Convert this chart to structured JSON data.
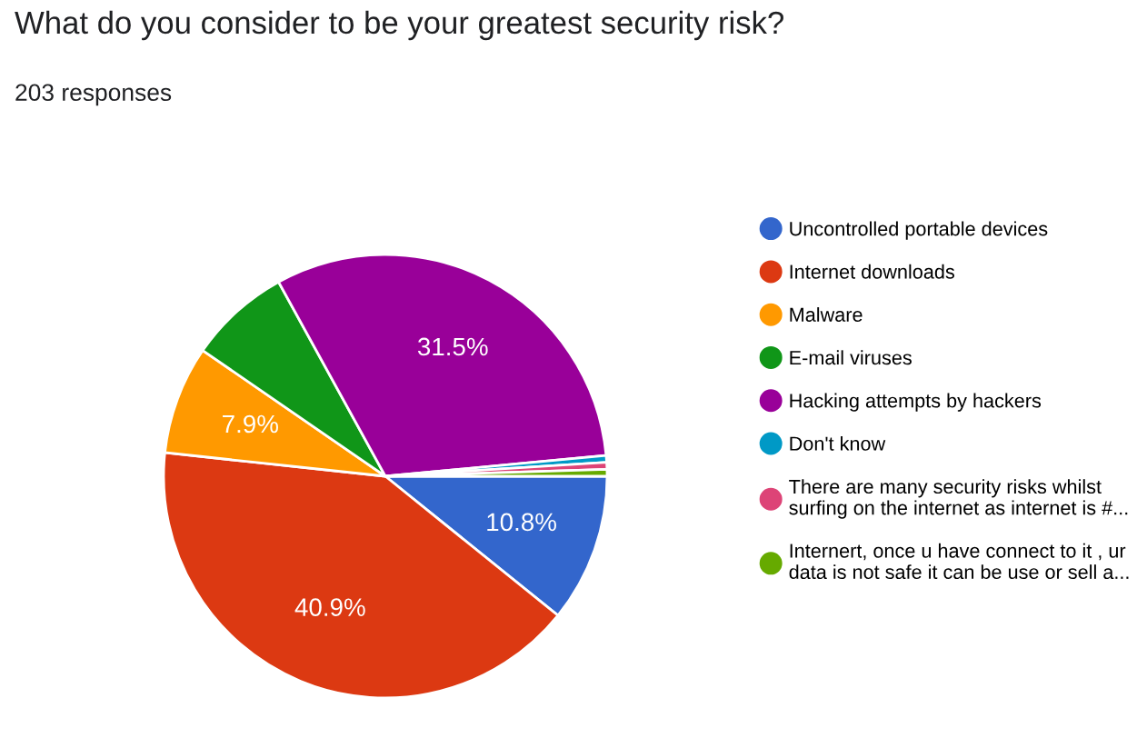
{
  "chart_data": {
    "type": "pie",
    "title": "What do you consider to be your greatest security risk?",
    "subtitle": "203 responses",
    "categories": [
      "Uncontrolled portable devices",
      "Internet downloads",
      "Malware",
      "E-mail viruses",
      "Hacking attempts by hackers",
      "Don't know",
      "There are many security risks whilst\nsurfing on the internet as internet is #...",
      "Internert, once u have connect to it , ur\ndata is not safe it can be use or sell a..."
    ],
    "values": [
      10.8,
      40.9,
      7.9,
      7.4,
      31.5,
      0.5,
      0.5,
      0.5
    ],
    "value_labels": [
      "10.8%",
      "40.9%",
      "7.9%",
      null,
      "31.5%",
      null,
      null,
      null
    ],
    "colors": [
      "#3366cc",
      "#dc3912",
      "#ff9900",
      "#109618",
      "#990099",
      "#0099c6",
      "#dd4477",
      "#66aa00"
    ],
    "legend": "right"
  }
}
